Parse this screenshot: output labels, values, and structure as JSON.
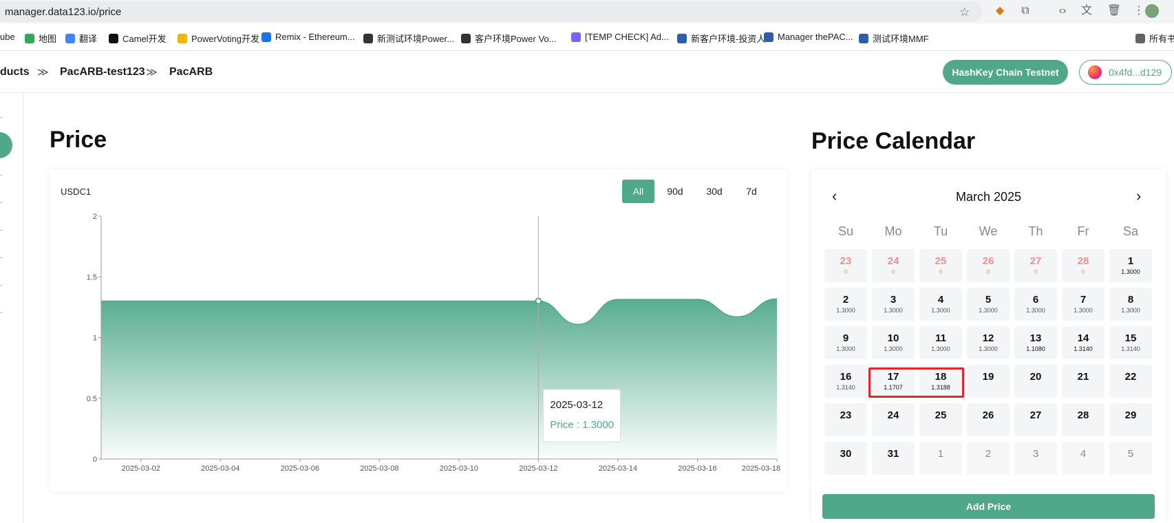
{
  "browser": {
    "url": "manager.data123.io/price",
    "bookmarks": [
      {
        "label": "ube",
        "icon": "youtube-icon",
        "color": "#ff0000"
      },
      {
        "label": "地图",
        "icon": "maps-icon",
        "color": "#34a853"
      },
      {
        "label": "翻译",
        "icon": "translate-icon",
        "color": "#4285f4"
      },
      {
        "label": "Camel开发",
        "icon": "notion-icon",
        "color": "#111111"
      },
      {
        "label": "PowerVoting开发",
        "icon": "powervoting-icon",
        "color": "#f4b400"
      },
      {
        "label": "Remix - Ethereum...",
        "icon": "remix-icon",
        "color": "#1a73e8"
      },
      {
        "label": "新测试环境Power...",
        "icon": "globe-icon",
        "color": "#333333"
      },
      {
        "label": "客户环境Power Vo...",
        "icon": "globe-icon",
        "color": "#333333"
      },
      {
        "label": "[TEMP CHECK] Ad...",
        "icon": "arbitrum-icon",
        "color": "#7b61ff"
      },
      {
        "label": "新客户环境-投资人",
        "icon": "pac-icon",
        "color": "#2b5fab"
      },
      {
        "label": "Manager thePAC...",
        "icon": "pac-icon",
        "color": "#2b5fab"
      },
      {
        "label": "测试环境MMF",
        "icon": "pac-icon",
        "color": "#2b5fab"
      },
      {
        "label": "所有书",
        "icon": "folder-icon",
        "color": "#5f6368"
      }
    ]
  },
  "header": {
    "breadcrumbs": [
      "ducts",
      "PacARB-test123",
      "PacARB"
    ],
    "separator": "≫",
    "chain_button": "HashKey Chain Testnet",
    "wallet_address": "0x4fd...d129"
  },
  "price_section": {
    "title": "Price",
    "token_label": "USDC1",
    "ranges": [
      "All",
      "90d",
      "30d",
      "7d"
    ],
    "active_range": "All",
    "tooltip": {
      "date": "2025-03-12",
      "label": "Price : 1.3000"
    },
    "accent_color": "#4fa88a"
  },
  "chart_data": {
    "type": "area",
    "title": "",
    "xlabel": "",
    "ylabel": "",
    "ylim": [
      0,
      2
    ],
    "yticks": [
      "0",
      "0.5",
      "1",
      "1.5",
      "2"
    ],
    "xticks": [
      "2025-03-02",
      "2025-03-04",
      "2025-03-06",
      "2025-03-08",
      "2025-03-10",
      "2025-03-12",
      "2025-03-14",
      "2025-03-16",
      "2025-03-18"
    ],
    "xrange": [
      "2025-03-01",
      "2025-03-18"
    ],
    "x": [
      "2025-03-01",
      "2025-03-02",
      "2025-03-03",
      "2025-03-04",
      "2025-03-05",
      "2025-03-06",
      "2025-03-07",
      "2025-03-08",
      "2025-03-09",
      "2025-03-10",
      "2025-03-11",
      "2025-03-12",
      "2025-03-13",
      "2025-03-14",
      "2025-03-15",
      "2025-03-16",
      "2025-03-17",
      "2025-03-18"
    ],
    "values": [
      1.3,
      1.3,
      1.3,
      1.3,
      1.3,
      1.3,
      1.3,
      1.3,
      1.3,
      1.3,
      1.3,
      1.3,
      1.108,
      1.314,
      1.314,
      1.314,
      1.1707,
      1.3188
    ],
    "highlight_index": 11,
    "grid": false
  },
  "calendar": {
    "title": "Price Calendar",
    "month_label": "March 2025",
    "prev": "‹",
    "next": "›",
    "weekdays": [
      "Su",
      "Mo",
      "Tu",
      "We",
      "Th",
      "Fr",
      "Sa"
    ],
    "cells": [
      {
        "d": "23",
        "p": "0",
        "kind": "prev"
      },
      {
        "d": "24",
        "p": "0",
        "kind": "prev"
      },
      {
        "d": "25",
        "p": "0",
        "kind": "prev"
      },
      {
        "d": "26",
        "p": "0",
        "kind": "prev"
      },
      {
        "d": "27",
        "p": "0",
        "kind": "prev"
      },
      {
        "d": "28",
        "p": "0",
        "kind": "prev"
      },
      {
        "d": "1",
        "p": "1.3000",
        "kind": "cur-bold"
      },
      {
        "d": "2",
        "p": "1.3000",
        "kind": "cur"
      },
      {
        "d": "3",
        "p": "1.3000",
        "kind": "cur"
      },
      {
        "d": "4",
        "p": "1.3000",
        "kind": "cur"
      },
      {
        "d": "5",
        "p": "1.3000",
        "kind": "cur"
      },
      {
        "d": "6",
        "p": "1.3000",
        "kind": "cur"
      },
      {
        "d": "7",
        "p": "1.3000",
        "kind": "cur"
      },
      {
        "d": "8",
        "p": "1.3000",
        "kind": "cur"
      },
      {
        "d": "9",
        "p": "1.3000",
        "kind": "cur"
      },
      {
        "d": "10",
        "p": "1.3000",
        "kind": "cur"
      },
      {
        "d": "11",
        "p": "1.3000",
        "kind": "cur"
      },
      {
        "d": "12",
        "p": "1.3000",
        "kind": "cur"
      },
      {
        "d": "13",
        "p": "1.1080",
        "kind": "cur-bold"
      },
      {
        "d": "14",
        "p": "1.3140",
        "kind": "cur-bold"
      },
      {
        "d": "15",
        "p": "1.3140",
        "kind": "cur"
      },
      {
        "d": "16",
        "p": "1.3140",
        "kind": "cur"
      },
      {
        "d": "17",
        "p": "1.1707",
        "kind": "cur-bold"
      },
      {
        "d": "18",
        "p": "1.3188",
        "kind": "cur-bold"
      },
      {
        "d": "19",
        "p": "",
        "kind": "cur"
      },
      {
        "d": "20",
        "p": "",
        "kind": "cur"
      },
      {
        "d": "21",
        "p": "",
        "kind": "cur"
      },
      {
        "d": "22",
        "p": "",
        "kind": "cur"
      },
      {
        "d": "23",
        "p": "",
        "kind": "cur"
      },
      {
        "d": "24",
        "p": "",
        "kind": "cur"
      },
      {
        "d": "25",
        "p": "",
        "kind": "cur"
      },
      {
        "d": "26",
        "p": "",
        "kind": "cur"
      },
      {
        "d": "27",
        "p": "",
        "kind": "cur"
      },
      {
        "d": "28",
        "p": "",
        "kind": "cur"
      },
      {
        "d": "29",
        "p": "",
        "kind": "cur"
      },
      {
        "d": "30",
        "p": "",
        "kind": "cur"
      },
      {
        "d": "31",
        "p": "",
        "kind": "cur"
      },
      {
        "d": "1",
        "p": "",
        "kind": "next"
      },
      {
        "d": "2",
        "p": "",
        "kind": "next"
      },
      {
        "d": "3",
        "p": "",
        "kind": "next"
      },
      {
        "d": "4",
        "p": "",
        "kind": "next"
      },
      {
        "d": "5",
        "p": "",
        "kind": "next"
      }
    ],
    "add_button": "Add Price",
    "highlight_color": "#e0272b"
  }
}
